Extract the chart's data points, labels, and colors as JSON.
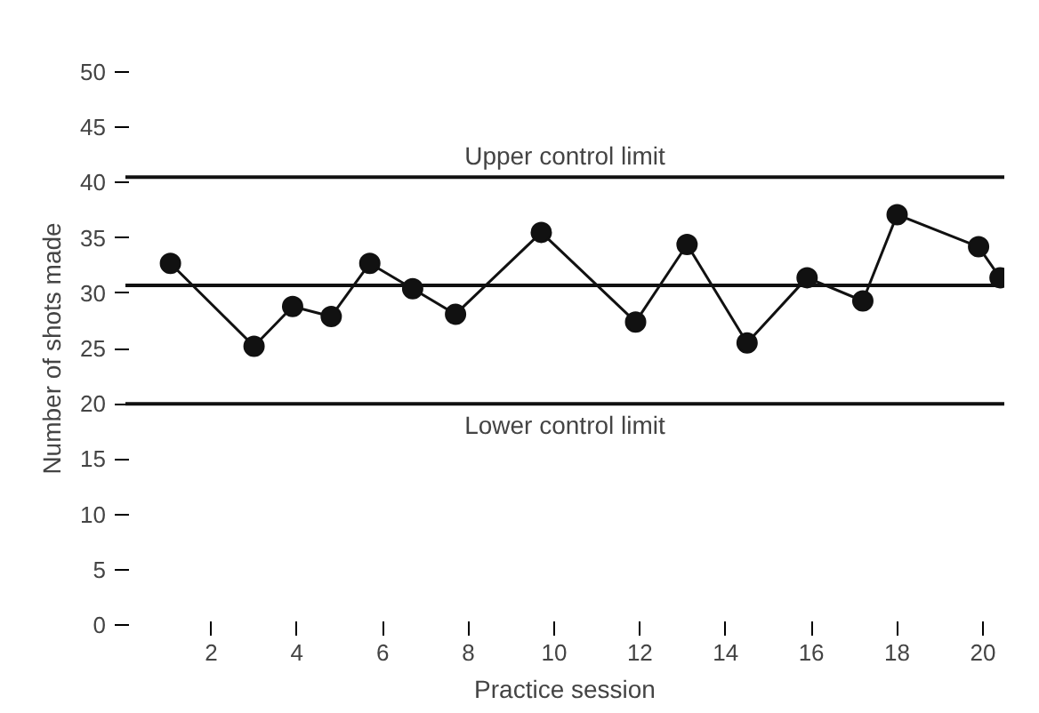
{
  "chart_data": {
    "type": "line",
    "xlabel": "Practice session",
    "ylabel": "Number of shots made",
    "x": [
      1.05,
      3.0,
      3.9,
      4.8,
      5.7,
      6.7,
      7.7,
      9.7,
      11.9,
      13.1,
      14.5,
      15.9,
      17.2,
      18.0,
      19.9,
      20.4
    ],
    "series": [
      {
        "color": "#111111",
        "values": [
          32.7,
          25.2,
          28.8,
          27.9,
          32.7,
          30.4,
          28.1,
          35.5,
          27.4,
          34.4,
          25.5,
          31.4,
          29.3,
          37.1,
          34.2,
          31.4
        ]
      }
    ],
    "marker": "circle",
    "line_style": "solid",
    "grid": false,
    "xlim": [
      0,
      20.5
    ],
    "ylim": [
      0,
      50
    ],
    "xticks": [
      2,
      4,
      6,
      8,
      10,
      12,
      14,
      16,
      18,
      20
    ],
    "yticks": [
      0,
      5,
      10,
      15,
      20,
      25,
      30,
      35,
      40,
      45,
      50
    ],
    "ref_lines": [
      {
        "axis": "y",
        "value": 40.5,
        "label": "Upper control limit",
        "color": "#111111"
      },
      {
        "axis": "y",
        "value": 30.7,
        "color": "#111111"
      },
      {
        "axis": "y",
        "value": 20,
        "label": "Lower control limit",
        "color": "#111111"
      }
    ]
  }
}
